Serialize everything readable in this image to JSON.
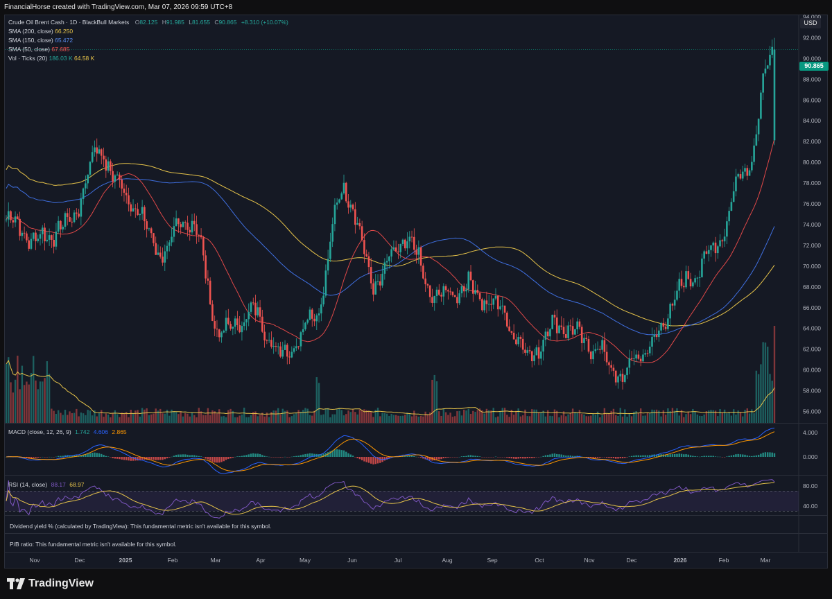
{
  "header": {
    "attribution": "FinancialHorse created with TradingView.com, Mar 07, 2026 09:59 UTC+8"
  },
  "legend": {
    "symbol": "Crude Oil Brent Cash · 1D · BlackBull Markets",
    "ohlc_O": "O",
    "ohlc_O_val": "82.125",
    "ohlc_H": "H",
    "ohlc_H_val": "91.985",
    "ohlc_L": "L",
    "ohlc_L_val": "81.655",
    "ohlc_C": "C",
    "ohlc_C_val": "90.865",
    "change": "+8.310 (+10.07%)",
    "sma200_label": "SMA (200, close)",
    "sma200_val": "66.250",
    "sma150_label": "SMA (150, close)",
    "sma150_val": "65.472",
    "sma50_label": "SMA (50, close)",
    "sma50_val": "67.685",
    "vol_label": "Vol · Ticks (20)",
    "vol_val": "186.03 K",
    "vol_ma_val": "64.58 K",
    "macd_label": "MACD (close, 12, 26, 9)",
    "macd_v1": "1.742",
    "macd_v2": "4.606",
    "macd_v3": "2.865",
    "rsi_label": "RSI (14, close)",
    "rsi_v1": "88.17",
    "rsi_v2": "68.97"
  },
  "notes": {
    "dividend": "Dividend yield % (calculated by TradingView): This fundamental metric isn't available for this symbol.",
    "pb": "P/B ratio: This fundamental metric isn't available for this symbol."
  },
  "price_axis": {
    "currency": "USD",
    "last_price": "90.865",
    "ticks": [
      "94.000",
      "92.000",
      "90.000",
      "88.000",
      "86.000",
      "84.000",
      "82.000",
      "80.000",
      "78.000",
      "76.000",
      "74.000",
      "72.000",
      "70.000",
      "68.000",
      "66.000",
      "64.000",
      "62.000",
      "60.000",
      "58.000",
      "56.000"
    ]
  },
  "macd_axis": {
    "ticks": [
      "4.000",
      "0.000"
    ]
  },
  "rsi_axis": {
    "ticks": [
      "80.00",
      "40.00"
    ]
  },
  "time_axis": [
    "Nov",
    "Dec",
    "2025",
    "Feb",
    "Mar",
    "Apr",
    "May",
    "Jun",
    "Jul",
    "Aug",
    "Sep",
    "Oct",
    "Nov",
    "Dec",
    "2026",
    "Feb",
    "Mar"
  ],
  "branding": {
    "logo_text": "TradingView"
  },
  "colors": {
    "up": "#26a69a",
    "down": "#ef5350",
    "sma200": "#e6c34a",
    "sma150": "#3f6fe0",
    "sma50": "#e04848",
    "vol_ma": "#e6c34a",
    "macd": "#2962ff",
    "signal": "#ff9800",
    "rsi": "#7e57c2",
    "rsi_ma": "#e6c34a",
    "rsi_band": "#7e57c2",
    "last": "#089981"
  },
  "chart_data": {
    "type": "candlestick",
    "ylim": [
      55,
      95
    ],
    "anchor_closes": [
      [
        "Nov",
        74.5
      ],
      [
        "Dec",
        72.5
      ],
      [
        "2025",
        74.0
      ],
      [
        "Jan-mid",
        81.0
      ],
      [
        "Feb",
        76.5
      ],
      [
        "Mar",
        71.5
      ],
      [
        "Mar-end",
        74.5
      ],
      [
        "Apr",
        63.5
      ],
      [
        "Apr-mid",
        65.5
      ],
      [
        "May",
        61.5
      ],
      [
        "Jun",
        65.0
      ],
      [
        "Jun-mid",
        77.5
      ],
      [
        "Jul",
        68.5
      ],
      [
        "Jul-end",
        72.5
      ],
      [
        "Aug",
        67.0
      ],
      [
        "Sep",
        68.0
      ],
      [
        "Oct",
        66.0
      ],
      [
        "Oct-mid",
        61.5
      ],
      [
        "Nov",
        64.5
      ],
      [
        "Dec",
        62.5
      ],
      [
        "Dec-mid",
        59.5
      ],
      [
        "2026",
        62.5
      ],
      [
        "Feb",
        68.0
      ],
      [
        "Feb-end",
        71.5
      ],
      [
        "Mar-3",
        79.0
      ],
      [
        "Mar-6",
        90.865
      ]
    ],
    "last_candle": {
      "open": 82.125,
      "high": 91.985,
      "low": 81.655,
      "close": 90.865
    },
    "sma200_last": 66.25,
    "sma150_last": 65.472,
    "sma50_last": 67.685,
    "macd_last": [
      1.742,
      4.606,
      2.865
    ],
    "rsi_last": [
      88.17,
      68.97
    ],
    "volume_last": "186.03 K",
    "volume_ma_last": "64.58 K"
  }
}
